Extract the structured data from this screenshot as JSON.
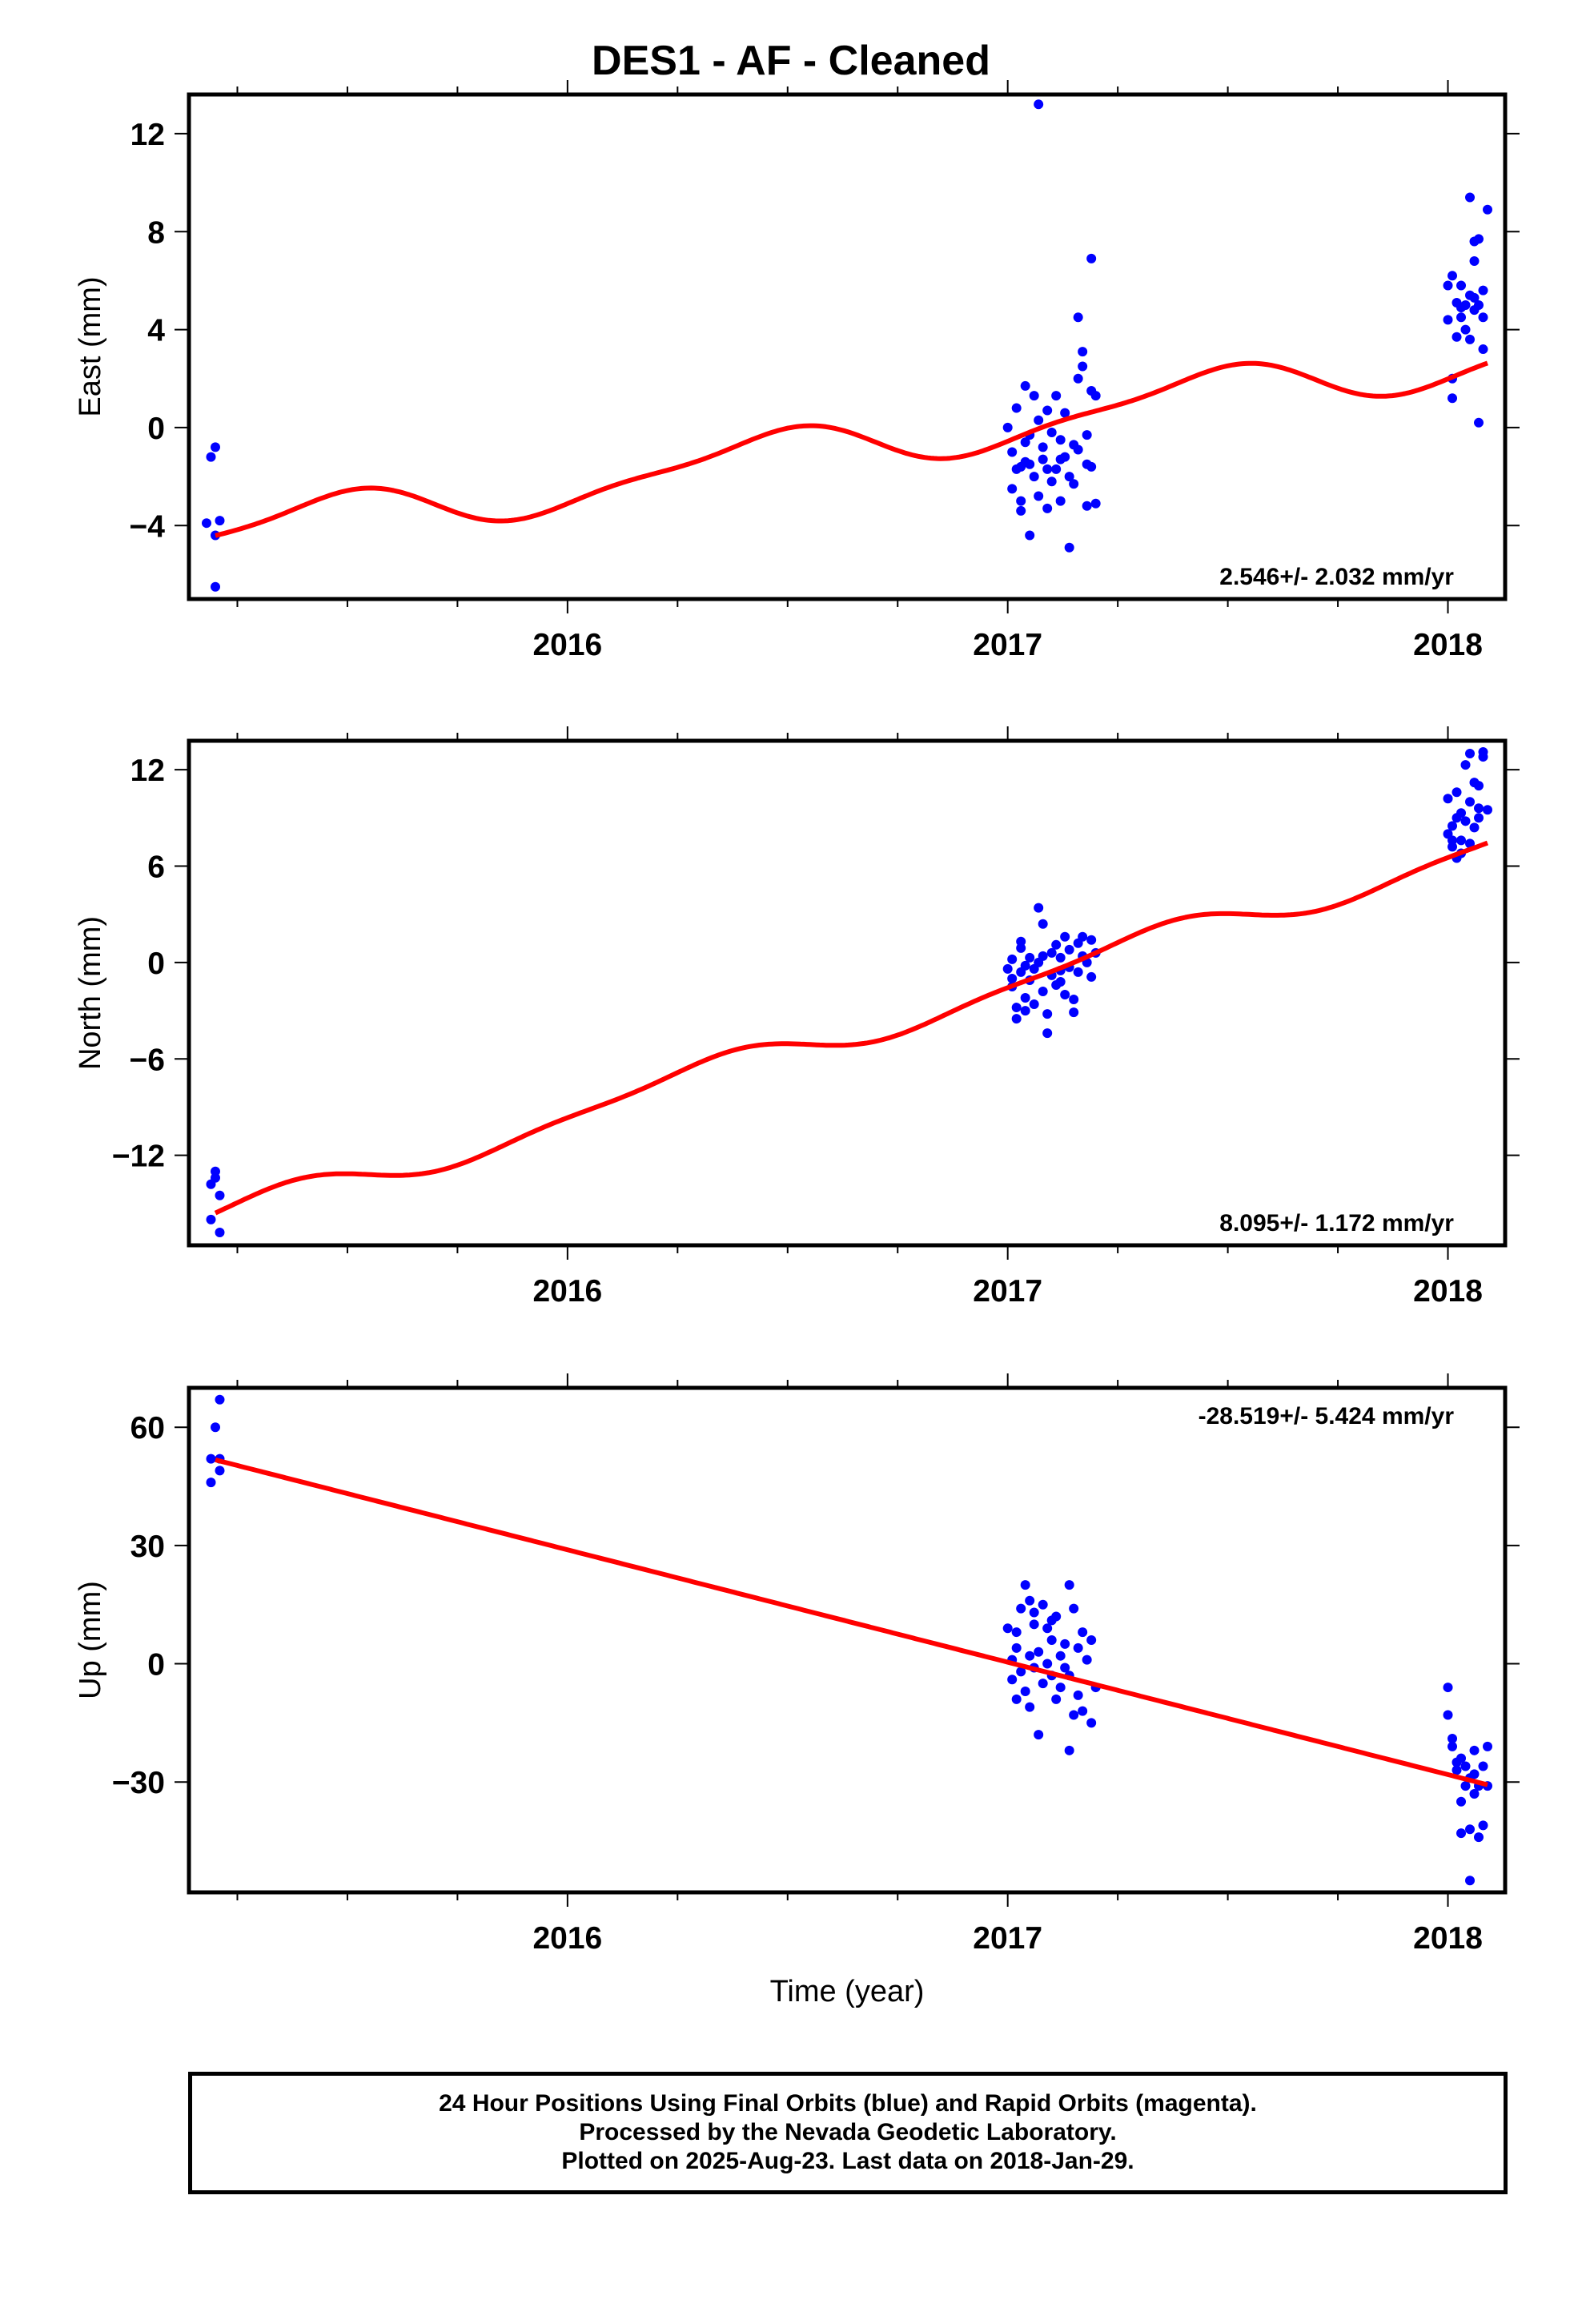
{
  "title": "DES1  - AF - Cleaned",
  "colors": {
    "points": "#0000ff",
    "fit": "#ff0000",
    "frame": "#000000"
  },
  "x_axis": {
    "label": "Time (year)",
    "ticks": [
      "2016",
      "2017",
      "2018"
    ]
  },
  "footer": {
    "line1": "24 Hour Positions Using Final Orbits (blue) and Rapid Orbits (magenta).",
    "line2": "Processed by the Nevada Geodetic Laboratory.",
    "line3": "Plotted on 2025-Aug-23. Last data on 2018-Jan-29."
  },
  "chart_data": [
    {
      "type": "scatter",
      "ylabel": "East (mm)",
      "rate_label": "2.546+/- 2.032 mm/yr",
      "rate_position": "bottom-right",
      "xlim": [
        2015.14,
        2018.13
      ],
      "ylim": [
        -7,
        13.6
      ],
      "yticks": [
        12,
        8,
        4,
        0,
        -4
      ],
      "ytick_labels": [
        "12",
        "8",
        "4",
        "0",
        "−4"
      ],
      "fit": {
        "offset": -0.85,
        "rate": 2.546,
        "t0": 2016.6,
        "amp1": 0.95,
        "phase1": 0.2,
        "amp2": 0.3,
        "phase2": 0.45
      },
      "points": [
        [
          2015.2,
          -0.8
        ],
        [
          2015.19,
          -1.2
        ],
        [
          2015.18,
          -3.9
        ],
        [
          2015.21,
          -3.8
        ],
        [
          2015.2,
          -4.4
        ],
        [
          2015.2,
          -6.5
        ],
        [
          2017.0,
          0.0
        ],
        [
          2017.01,
          -1.0
        ],
        [
          2017.02,
          -1.7
        ],
        [
          2017.01,
          -2.5
        ],
        [
          2017.02,
          0.8
        ],
        [
          2017.03,
          -1.6
        ],
        [
          2017.03,
          -3.0
        ],
        [
          2017.03,
          -3.4
        ],
        [
          2017.04,
          1.7
        ],
        [
          2017.04,
          -0.6
        ],
        [
          2017.05,
          -4.4
        ],
        [
          2017.05,
          -1.5
        ],
        [
          2017.05,
          -0.3
        ],
        [
          2017.06,
          1.3
        ],
        [
          2017.07,
          0.3
        ],
        [
          2017.06,
          -2.0
        ],
        [
          2017.07,
          -2.8
        ],
        [
          2017.08,
          -0.8
        ],
        [
          2017.08,
          -1.3
        ],
        [
          2017.09,
          -3.3
        ],
        [
          2017.09,
          0.7
        ],
        [
          2017.1,
          -0.2
        ],
        [
          2017.1,
          -2.2
        ],
        [
          2017.07,
          13.2
        ],
        [
          2017.11,
          1.3
        ],
        [
          2017.11,
          -1.7
        ],
        [
          2017.12,
          -3.0
        ],
        [
          2017.12,
          -0.5
        ],
        [
          2017.13,
          0.6
        ],
        [
          2017.13,
          -1.2
        ],
        [
          2017.14,
          -2.0
        ],
        [
          2017.14,
          -4.9
        ],
        [
          2017.15,
          -0.7
        ],
        [
          2017.15,
          -2.3
        ],
        [
          2017.16,
          4.5
        ],
        [
          2017.16,
          2.0
        ],
        [
          2017.17,
          3.1
        ],
        [
          2017.17,
          2.5
        ],
        [
          2017.18,
          -0.3
        ],
        [
          2017.18,
          -3.2
        ],
        [
          2017.18,
          -1.5
        ],
        [
          2017.19,
          6.9
        ],
        [
          2017.19,
          1.5
        ],
        [
          2017.2,
          1.3
        ],
        [
          2017.2,
          -3.1
        ],
        [
          2017.19,
          -1.6
        ],
        [
          2017.12,
          -1.3
        ],
        [
          2017.04,
          -1.4
        ],
        [
          2017.16,
          -0.9
        ],
        [
          2017.09,
          -1.7
        ],
        [
          2018.0,
          5.8
        ],
        [
          2018.01,
          6.2
        ],
        [
          2018.0,
          4.4
        ],
        [
          2018.01,
          1.2
        ],
        [
          2018.02,
          5.1
        ],
        [
          2018.02,
          3.7
        ],
        [
          2018.03,
          4.5
        ],
        [
          2018.03,
          5.8
        ],
        [
          2018.04,
          5.0
        ],
        [
          2018.04,
          4.0
        ],
        [
          2018.05,
          9.4
        ],
        [
          2018.05,
          5.4
        ],
        [
          2018.05,
          3.6
        ],
        [
          2018.06,
          7.6
        ],
        [
          2018.06,
          4.8
        ],
        [
          2018.06,
          6.8
        ],
        [
          2018.07,
          5.0
        ],
        [
          2018.07,
          0.2
        ],
        [
          2018.07,
          7.7
        ],
        [
          2018.08,
          3.2
        ],
        [
          2018.08,
          4.5
        ],
        [
          2018.08,
          5.6
        ],
        [
          2018.09,
          8.9
        ],
        [
          2018.01,
          2.0
        ],
        [
          2018.03,
          4.9
        ],
        [
          2018.06,
          5.3
        ]
      ]
    },
    {
      "type": "scatter",
      "ylabel": "North (mm)",
      "rate_label": "8.095+/- 1.172 mm/yr",
      "rate_position": "bottom-right",
      "xlim": [
        2015.14,
        2018.13
      ],
      "ylim": [
        -17.6,
        13.8
      ],
      "yticks": [
        12,
        6,
        0,
        -6,
        -12
      ],
      "ytick_labels": [
        "12",
        "6",
        "0",
        "−6",
        "−12"
      ],
      "fit": {
        "offset": -4.7,
        "rate": 8.095,
        "t0": 2016.6,
        "amp1": 0.9,
        "phase1": 0.05,
        "amp2": 0.3,
        "phase2": 0.3
      },
      "points": [
        [
          2015.2,
          -13.0
        ],
        [
          2015.2,
          -13.4
        ],
        [
          2015.19,
          -13.8
        ],
        [
          2015.21,
          -14.5
        ],
        [
          2015.19,
          -16.0
        ],
        [
          2015.21,
          -16.8
        ],
        [
          2017.0,
          -0.4
        ],
        [
          2017.01,
          -1.0
        ],
        [
          2017.01,
          0.2
        ],
        [
          2017.01,
          -1.5
        ],
        [
          2017.02,
          -2.8
        ],
        [
          2017.02,
          -3.5
        ],
        [
          2017.03,
          0.9
        ],
        [
          2017.03,
          1.3
        ],
        [
          2017.03,
          -0.6
        ],
        [
          2017.04,
          -2.2
        ],
        [
          2017.04,
          -3.0
        ],
        [
          2017.05,
          0.3
        ],
        [
          2017.05,
          -1.1
        ],
        [
          2017.06,
          -0.4
        ],
        [
          2017.06,
          -2.6
        ],
        [
          2017.07,
          3.4
        ],
        [
          2017.07,
          0.0
        ],
        [
          2017.08,
          -1.8
        ],
        [
          2017.08,
          2.4
        ],
        [
          2017.09,
          -3.2
        ],
        [
          2017.09,
          -4.4
        ],
        [
          2017.1,
          0.6
        ],
        [
          2017.1,
          -0.8
        ],
        [
          2017.11,
          1.1
        ],
        [
          2017.11,
          -1.4
        ],
        [
          2017.12,
          0.3
        ],
        [
          2017.12,
          -0.5
        ],
        [
          2017.13,
          1.6
        ],
        [
          2017.13,
          -2.0
        ],
        [
          2017.14,
          0.8
        ],
        [
          2017.14,
          -0.3
        ],
        [
          2017.15,
          -3.1
        ],
        [
          2017.15,
          -2.3
        ],
        [
          2017.16,
          1.2
        ],
        [
          2017.16,
          -0.6
        ],
        [
          2017.17,
          0.4
        ],
        [
          2017.17,
          1.6
        ],
        [
          2017.18,
          0.0
        ],
        [
          2017.19,
          -0.9
        ],
        [
          2017.19,
          1.4
        ],
        [
          2017.2,
          0.6
        ],
        [
          2017.04,
          -0.2
        ],
        [
          2017.08,
          0.4
        ],
        [
          2017.12,
          -1.2
        ],
        [
          2018.0,
          8.0
        ],
        [
          2018.0,
          10.2
        ],
        [
          2018.01,
          7.6
        ],
        [
          2018.01,
          8.5
        ],
        [
          2018.01,
          7.2
        ],
        [
          2018.02,
          10.6
        ],
        [
          2018.02,
          6.5
        ],
        [
          2018.03,
          9.3
        ],
        [
          2018.03,
          7.6
        ],
        [
          2018.03,
          6.8
        ],
        [
          2018.04,
          12.3
        ],
        [
          2018.04,
          8.8
        ],
        [
          2018.05,
          13.0
        ],
        [
          2018.05,
          10.0
        ],
        [
          2018.06,
          11.2
        ],
        [
          2018.06,
          8.4
        ],
        [
          2018.07,
          9.6
        ],
        [
          2018.07,
          9.0
        ],
        [
          2018.08,
          12.8
        ],
        [
          2018.08,
          13.1
        ],
        [
          2018.09,
          9.5
        ],
        [
          2018.05,
          7.4
        ],
        [
          2018.02,
          9.0
        ],
        [
          2018.07,
          11.0
        ]
      ]
    },
    {
      "type": "scatter",
      "ylabel": "Up (mm)",
      "xlabel": "Time (year)",
      "rate_label": "-28.519+/- 5.424 mm/yr",
      "rate_position": "top-right",
      "xlim": [
        2015.14,
        2018.13
      ],
      "ylim": [
        -58,
        70
      ],
      "yticks": [
        60,
        30,
        0,
        -30
      ],
      "ytick_labels": [
        "60",
        "30",
        "0",
        "−30"
      ],
      "fit": {
        "offset": 11.8,
        "rate": -28.519,
        "t0": 2016.6,
        "amp1": 0,
        "phase1": 0,
        "amp2": 0,
        "phase2": 0
      },
      "points": [
        [
          2015.21,
          67
        ],
        [
          2015.2,
          60
        ],
        [
          2015.19,
          52
        ],
        [
          2015.21,
          52
        ],
        [
          2015.21,
          49
        ],
        [
          2015.19,
          46
        ],
        [
          2017.0,
          9
        ],
        [
          2017.01,
          1
        ],
        [
          2017.01,
          -4
        ],
        [
          2017.02,
          4
        ],
        [
          2017.02,
          8
        ],
        [
          2017.03,
          14
        ],
        [
          2017.03,
          -2
        ],
        [
          2017.04,
          20
        ],
        [
          2017.04,
          -7
        ],
        [
          2017.05,
          16
        ],
        [
          2017.05,
          2
        ],
        [
          2017.05,
          -11
        ],
        [
          2017.06,
          10
        ],
        [
          2017.06,
          -1
        ],
        [
          2017.07,
          -18
        ],
        [
          2017.07,
          3
        ],
        [
          2017.08,
          15
        ],
        [
          2017.08,
          -5
        ],
        [
          2017.09,
          9
        ],
        [
          2017.09,
          0
        ],
        [
          2017.1,
          6
        ],
        [
          2017.1,
          -3
        ],
        [
          2017.11,
          12
        ],
        [
          2017.11,
          -9
        ],
        [
          2017.12,
          2
        ],
        [
          2017.12,
          -6
        ],
        [
          2017.13,
          -1
        ],
        [
          2017.13,
          5
        ],
        [
          2017.14,
          20
        ],
        [
          2017.14,
          -22
        ],
        [
          2017.15,
          14
        ],
        [
          2017.15,
          -13
        ],
        [
          2017.16,
          4
        ],
        [
          2017.16,
          -8
        ],
        [
          2017.17,
          8
        ],
        [
          2017.17,
          -12
        ],
        [
          2017.18,
          1
        ],
        [
          2017.19,
          6
        ],
        [
          2017.19,
          -15
        ],
        [
          2017.2,
          -6
        ],
        [
          2017.02,
          -9
        ],
        [
          2017.06,
          13
        ],
        [
          2017.1,
          11
        ],
        [
          2017.14,
          -3
        ],
        [
          2018.0,
          -6
        ],
        [
          2018.0,
          -13
        ],
        [
          2018.01,
          -19
        ],
        [
          2018.01,
          -21
        ],
        [
          2018.02,
          -25
        ],
        [
          2018.02,
          -27
        ],
        [
          2018.03,
          -43
        ],
        [
          2018.03,
          -35
        ],
        [
          2018.04,
          -31
        ],
        [
          2018.04,
          -26
        ],
        [
          2018.05,
          -29
        ],
        [
          2018.05,
          -42
        ],
        [
          2018.05,
          -55
        ],
        [
          2018.06,
          -22
        ],
        [
          2018.06,
          -33
        ],
        [
          2018.07,
          -31
        ],
        [
          2018.07,
          -44
        ],
        [
          2018.08,
          -26
        ],
        [
          2018.08,
          -41
        ],
        [
          2018.09,
          -21
        ],
        [
          2018.09,
          -31
        ],
        [
          2018.03,
          -24
        ],
        [
          2018.06,
          -28
        ]
      ]
    }
  ]
}
